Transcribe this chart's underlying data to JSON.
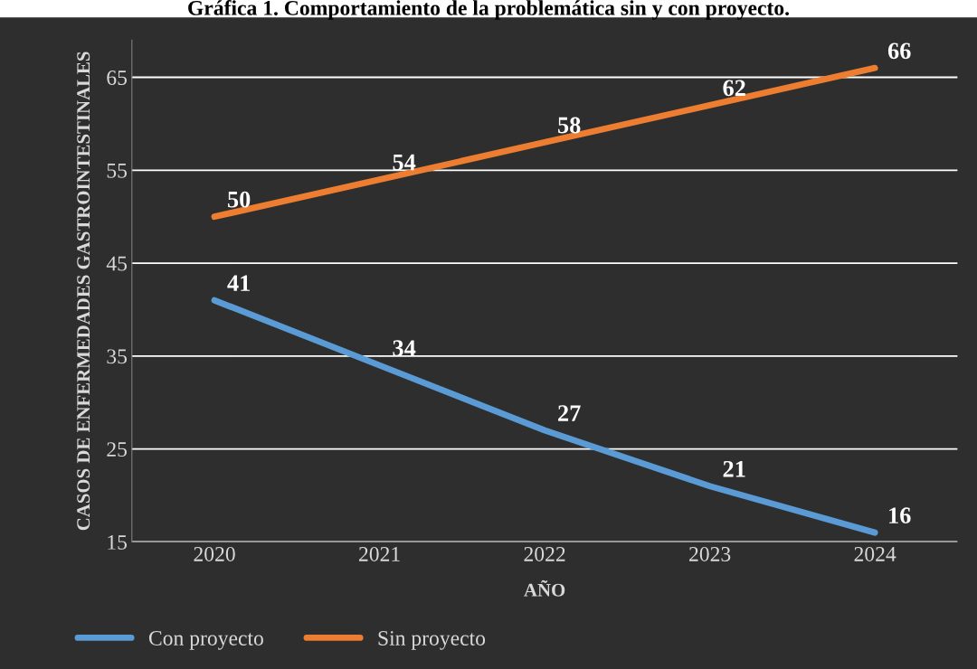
{
  "chart_data": {
    "type": "line",
    "title": "Gráfica 1. Comportamiento de la problemática sin y con proyecto.",
    "xlabel": "AÑO",
    "ylabel": "CASOS DE ENFERMEDADES GASTROINTESTINALES",
    "categories": [
      "2020",
      "2021",
      "2022",
      "2023",
      "2024"
    ],
    "series": [
      {
        "name": "Con proyecto",
        "color": "#5b9bd5",
        "values": [
          41,
          34,
          27,
          21,
          16
        ]
      },
      {
        "name": "Sin proyecto",
        "color": "#ed7d31",
        "values": [
          50,
          54,
          58,
          62,
          66
        ]
      }
    ],
    "ylim": [
      15,
      69
    ],
    "yticks": [
      15,
      25,
      35,
      45,
      55,
      65
    ],
    "grid": "y",
    "legend": "bottom",
    "data_labels": true,
    "marker": "none",
    "line_style": "solid"
  }
}
